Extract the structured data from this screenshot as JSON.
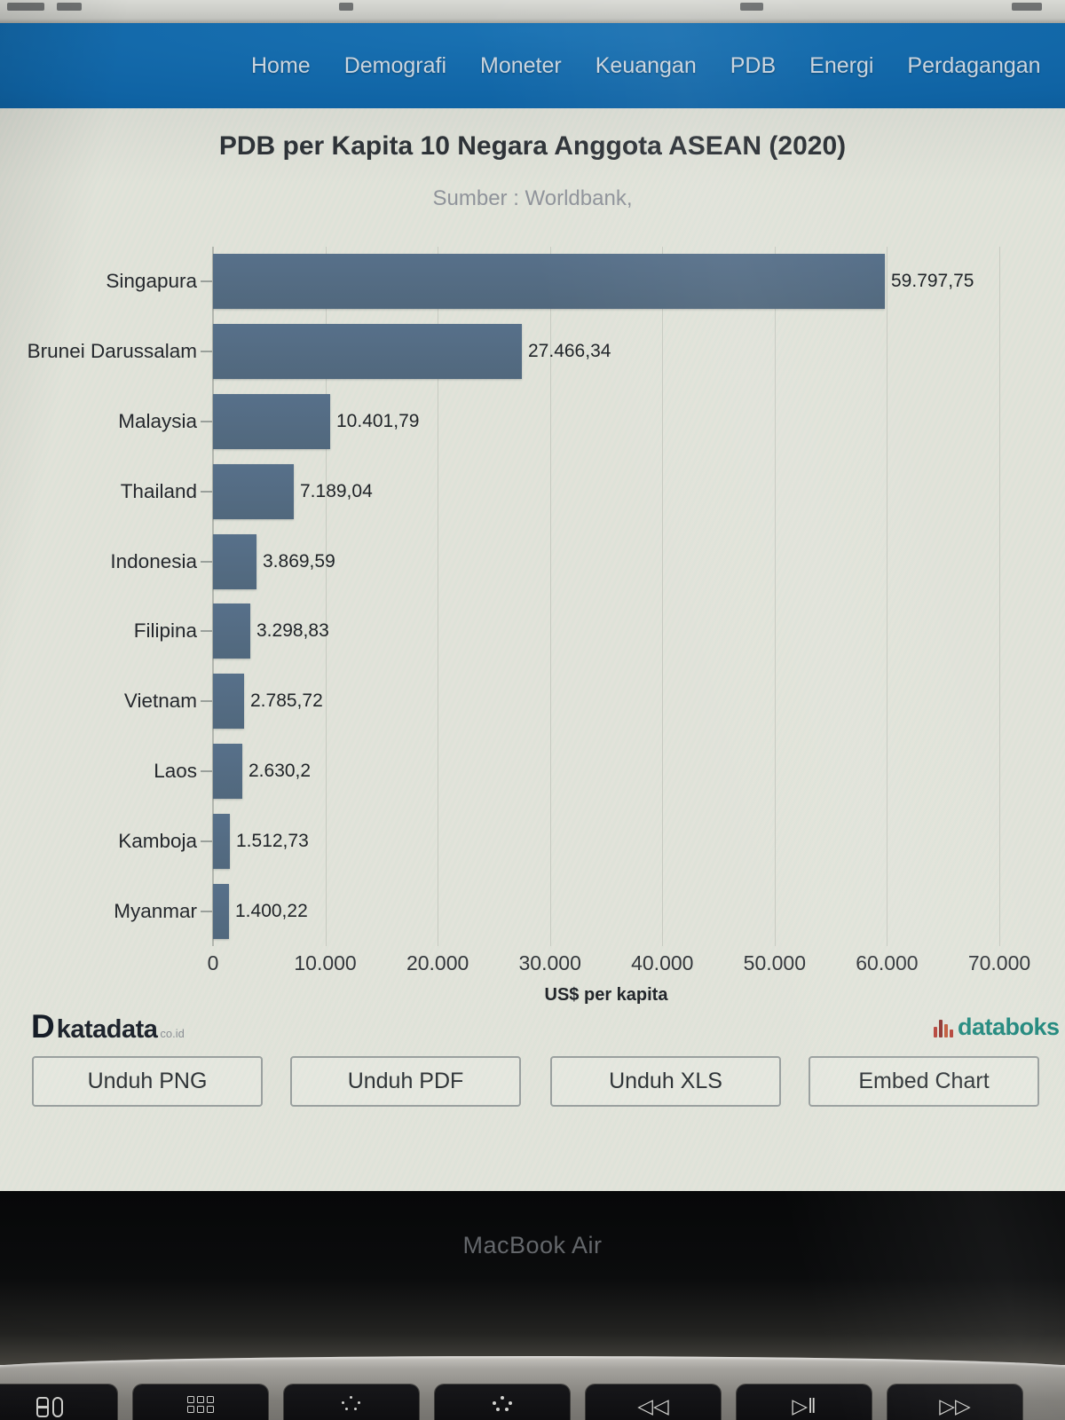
{
  "nav": {
    "items": [
      "Home",
      "Demografi",
      "Moneter",
      "Keuangan",
      "PDB",
      "Energi",
      "Perdagangan"
    ]
  },
  "chart_data": {
    "type": "bar",
    "orientation": "horizontal",
    "title": "PDB per Kapita 10 Negara Anggota ASEAN (2020)",
    "subtitle": "Sumber : Worldbank,",
    "categories": [
      "Singapura",
      "Brunei Darussalam",
      "Malaysia",
      "Thailand",
      "Indonesia",
      "Filipina",
      "Vietnam",
      "Laos",
      "Kamboja",
      "Myanmar"
    ],
    "values": [
      59797.75,
      27466.34,
      10401.79,
      7189.04,
      3869.59,
      3298.83,
      2785.72,
      2630.2,
      1512.73,
      1400.22
    ],
    "value_labels": [
      "59.797,75",
      "27.466,34",
      "10.401,79",
      "7.189,04",
      "3.869,59",
      "3.298,83",
      "2.785,72",
      "2.630,2",
      "1.512,73",
      "1.400,22"
    ],
    "xlabel": "US$ per kapita",
    "xlim": [
      0,
      70000
    ],
    "x_ticks": [
      "0",
      "10.000",
      "20.000",
      "30.000",
      "40.000",
      "50.000",
      "60.000",
      "70.000"
    ],
    "grid": true,
    "legend": false
  },
  "footer": {
    "brand_left": {
      "mark": "D",
      "name": "katadata",
      "suffix": "co.id"
    },
    "brand_right": {
      "name": "databoks"
    },
    "buttons": [
      "Unduh PNG",
      "Unduh PDF",
      "Unduh XLS",
      "Embed Chart"
    ]
  },
  "device": {
    "label": "MacBook Air"
  },
  "keyboard": {
    "keys": [
      {
        "icon": "mission-control"
      },
      {
        "icon": "launchpad"
      },
      {
        "icon": "keyboard-backlight-dim"
      },
      {
        "icon": "keyboard-backlight-bright"
      },
      {
        "icon": "rewind",
        "glyph": "◁◁"
      },
      {
        "icon": "play-pause",
        "glyph": "▷‖"
      },
      {
        "icon": "fast-forward",
        "glyph": "▷▷"
      }
    ]
  },
  "colors": {
    "navbar_blue": "#1065a7",
    "bar_fill": "#57708a",
    "databoks_teal": "#23897e",
    "brand_red": "#b5443a"
  }
}
